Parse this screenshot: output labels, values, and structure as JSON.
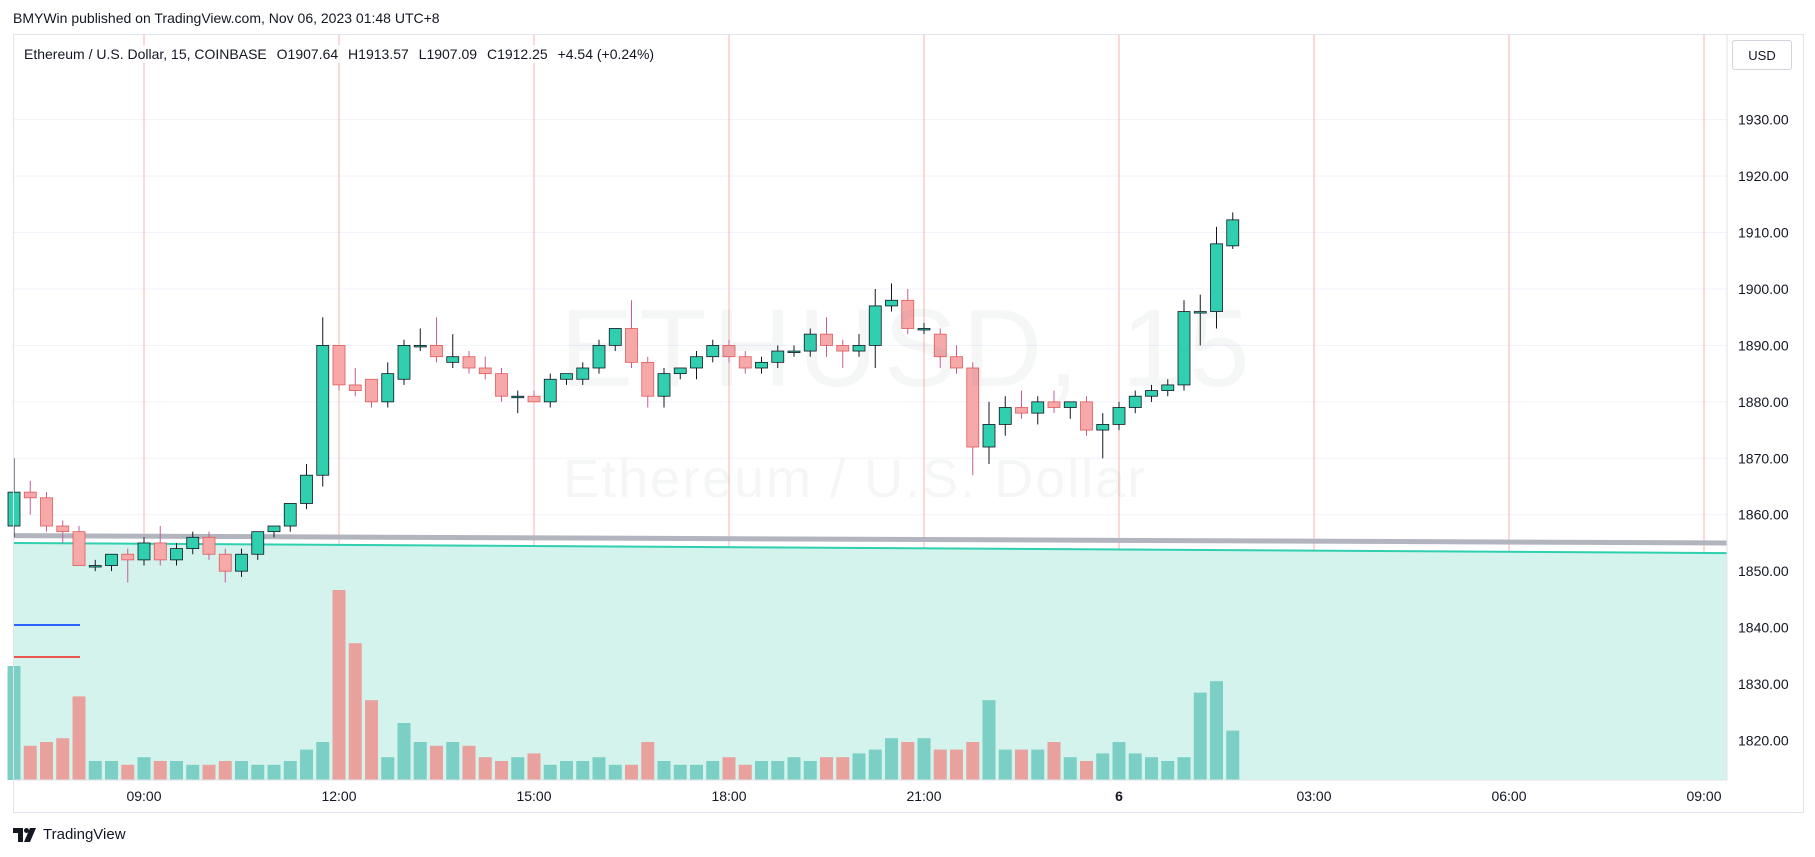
{
  "header": {
    "published": "BMYWin published on TradingView.com, Nov 06, 2023 01:48 UTC+8"
  },
  "legend": {
    "symbol": "Ethereum / U.S. Dollar, 15, COINBASE",
    "open": "O1907.64",
    "high": "H1913.57",
    "low": "L1907.09",
    "close": "C1912.25",
    "change": "+4.54 (+0.24%)"
  },
  "currency_button": "USD",
  "watermark": {
    "ticker": "ETHUSD, 15",
    "name": "Ethereum / U.S. Dollar"
  },
  "brand": {
    "name": "TradingView"
  },
  "colors": {
    "up": "#26a69a",
    "up_fill": "#2fcfb0",
    "down": "#ef5350",
    "down_fill": "#f7a9aa",
    "volume_up": "#7ccfc4",
    "volume_down": "#e8a19d",
    "grid": "#f0f3fa",
    "session_line": "#f4b6b0",
    "ma_gray": "#b2b5be",
    "ma_teal": "#2fcfb0",
    "fill_teal": "#d4f3ed",
    "legend_blue": "#2962ff",
    "legend_red": "#ef5350"
  },
  "chart_data": {
    "type": "candlestick",
    "title": "Ethereum / U.S. Dollar, 15, COINBASE",
    "interval_minutes": 15,
    "ylim": [
      1813,
      1945
    ],
    "y_ticks": [
      1820,
      1830,
      1840,
      1850,
      1860,
      1870,
      1880,
      1890,
      1900,
      1910,
      1920,
      1930
    ],
    "y_tick_labels": [
      "1820.00",
      "1830.00",
      "1840.00",
      "1850.00",
      "1860.00",
      "1870.00",
      "1880.00",
      "1890.00",
      "1900.00",
      "1910.00",
      "1920.00",
      "1930.00"
    ],
    "x_tick_labels": [
      "09:00",
      "12:00",
      "15:00",
      "18:00",
      "21:00",
      "6",
      "03:00",
      "06:00",
      "09:00"
    ],
    "x_ticks_hours": [
      9,
      12,
      15,
      18,
      21,
      24,
      27,
      30,
      33
    ],
    "x_range_hours": [
      7,
      33.3
    ],
    "candles": [
      {
        "t": 7.0,
        "o": 1858,
        "h": 1870,
        "l": 1856,
        "c": 1864
      },
      {
        "t": 7.25,
        "o": 1864,
        "h": 1866,
        "l": 1860,
        "c": 1863
      },
      {
        "t": 7.5,
        "o": 1863,
        "h": 1864,
        "l": 1857,
        "c": 1858
      },
      {
        "t": 7.75,
        "o": 1858,
        "h": 1859,
        "l": 1855,
        "c": 1857
      },
      {
        "t": 8.0,
        "o": 1857,
        "h": 1858,
        "l": 1851,
        "c": 1851
      },
      {
        "t": 8.25,
        "o": 1851,
        "h": 1852,
        "l": 1850,
        "c": 1851
      },
      {
        "t": 8.5,
        "o": 1851,
        "h": 1853,
        "l": 1850,
        "c": 1853
      },
      {
        "t": 8.75,
        "o": 1853,
        "h": 1854,
        "l": 1848,
        "c": 1852
      },
      {
        "t": 9.0,
        "o": 1852,
        "h": 1856,
        "l": 1851,
        "c": 1855
      },
      {
        "t": 9.25,
        "o": 1855,
        "h": 1858,
        "l": 1851,
        "c": 1852
      },
      {
        "t": 9.5,
        "o": 1852,
        "h": 1855,
        "l": 1851,
        "c": 1854
      },
      {
        "t": 9.75,
        "o": 1854,
        "h": 1857,
        "l": 1853,
        "c": 1856
      },
      {
        "t": 10.0,
        "o": 1856,
        "h": 1857,
        "l": 1852,
        "c": 1853
      },
      {
        "t": 10.25,
        "o": 1853,
        "h": 1854,
        "l": 1848,
        "c": 1850
      },
      {
        "t": 10.5,
        "o": 1850,
        "h": 1854,
        "l": 1849,
        "c": 1853
      },
      {
        "t": 10.75,
        "o": 1853,
        "h": 1857,
        "l": 1852,
        "c": 1857
      },
      {
        "t": 11.0,
        "o": 1857,
        "h": 1858,
        "l": 1856,
        "c": 1858
      },
      {
        "t": 11.25,
        "o": 1858,
        "h": 1862,
        "l": 1857,
        "c": 1862
      },
      {
        "t": 11.5,
        "o": 1862,
        "h": 1869,
        "l": 1861,
        "c": 1867
      },
      {
        "t": 11.75,
        "o": 1867,
        "h": 1895,
        "l": 1865,
        "c": 1890
      },
      {
        "t": 12.0,
        "o": 1890,
        "h": 1890,
        "l": 1882,
        "c": 1883
      },
      {
        "t": 12.25,
        "o": 1883,
        "h": 1886,
        "l": 1881,
        "c": 1882
      },
      {
        "t": 12.5,
        "o": 1884,
        "h": 1884,
        "l": 1879,
        "c": 1880
      },
      {
        "t": 12.75,
        "o": 1880,
        "h": 1887,
        "l": 1879,
        "c": 1885
      },
      {
        "t": 13.0,
        "o": 1884,
        "h": 1891,
        "l": 1883,
        "c": 1890
      },
      {
        "t": 13.25,
        "o": 1890,
        "h": 1893,
        "l": 1889,
        "c": 1890
      },
      {
        "t": 13.5,
        "o": 1890,
        "h": 1895,
        "l": 1887,
        "c": 1888
      },
      {
        "t": 13.75,
        "o": 1887,
        "h": 1892,
        "l": 1886,
        "c": 1888
      },
      {
        "t": 14.0,
        "o": 1888,
        "h": 1889,
        "l": 1885,
        "c": 1886
      },
      {
        "t": 14.25,
        "o": 1886,
        "h": 1888,
        "l": 1884,
        "c": 1885
      },
      {
        "t": 14.5,
        "o": 1885,
        "h": 1886,
        "l": 1880,
        "c": 1881
      },
      {
        "t": 14.75,
        "o": 1881,
        "h": 1882,
        "l": 1878,
        "c": 1881
      },
      {
        "t": 15.0,
        "o": 1881,
        "h": 1882,
        "l": 1880,
        "c": 1880
      },
      {
        "t": 15.25,
        "o": 1880,
        "h": 1885,
        "l": 1879,
        "c": 1884
      },
      {
        "t": 15.5,
        "o": 1884,
        "h": 1885,
        "l": 1883,
        "c": 1885
      },
      {
        "t": 15.75,
        "o": 1884,
        "h": 1887,
        "l": 1883,
        "c": 1886
      },
      {
        "t": 16.0,
        "o": 1886,
        "h": 1891,
        "l": 1885,
        "c": 1890
      },
      {
        "t": 16.25,
        "o": 1890,
        "h": 1893,
        "l": 1889,
        "c": 1893
      },
      {
        "t": 16.5,
        "o": 1893,
        "h": 1898,
        "l": 1886,
        "c": 1887
      },
      {
        "t": 16.75,
        "o": 1887,
        "h": 1888,
        "l": 1879,
        "c": 1881
      },
      {
        "t": 17.0,
        "o": 1881,
        "h": 1886,
        "l": 1879,
        "c": 1885
      },
      {
        "t": 17.25,
        "o": 1885,
        "h": 1886,
        "l": 1884,
        "c": 1886
      },
      {
        "t": 17.5,
        "o": 1886,
        "h": 1889,
        "l": 1884,
        "c": 1888
      },
      {
        "t": 17.75,
        "o": 1888,
        "h": 1891,
        "l": 1887,
        "c": 1890
      },
      {
        "t": 18.0,
        "o": 1890,
        "h": 1891,
        "l": 1887,
        "c": 1888
      },
      {
        "t": 18.25,
        "o": 1888,
        "h": 1889,
        "l": 1885,
        "c": 1886
      },
      {
        "t": 18.5,
        "o": 1886,
        "h": 1888,
        "l": 1885,
        "c": 1887
      },
      {
        "t": 18.75,
        "o": 1887,
        "h": 1890,
        "l": 1886,
        "c": 1889
      },
      {
        "t": 19.0,
        "o": 1889,
        "h": 1890,
        "l": 1888,
        "c": 1889
      },
      {
        "t": 19.25,
        "o": 1889,
        "h": 1893,
        "l": 1888,
        "c": 1892
      },
      {
        "t": 19.5,
        "o": 1892,
        "h": 1895,
        "l": 1888,
        "c": 1890
      },
      {
        "t": 19.75,
        "o": 1890,
        "h": 1891,
        "l": 1886,
        "c": 1889
      },
      {
        "t": 20.0,
        "o": 1889,
        "h": 1892,
        "l": 1888,
        "c": 1890
      },
      {
        "t": 20.25,
        "o": 1890,
        "h": 1900,
        "l": 1886,
        "c": 1897
      },
      {
        "t": 20.5,
        "o": 1897,
        "h": 1901,
        "l": 1896,
        "c": 1898
      },
      {
        "t": 20.75,
        "o": 1898,
        "h": 1900,
        "l": 1892,
        "c": 1893
      },
      {
        "t": 21.0,
        "o": 1893,
        "h": 1894,
        "l": 1892,
        "c": 1893
      },
      {
        "t": 21.25,
        "o": 1892,
        "h": 1893,
        "l": 1886,
        "c": 1888
      },
      {
        "t": 21.5,
        "o": 1888,
        "h": 1890,
        "l": 1885,
        "c": 1886
      },
      {
        "t": 21.75,
        "o": 1886,
        "h": 1887,
        "l": 1867,
        "c": 1872
      },
      {
        "t": 22.0,
        "o": 1872,
        "h": 1880,
        "l": 1869,
        "c": 1876
      },
      {
        "t": 22.25,
        "o": 1876,
        "h": 1881,
        "l": 1874,
        "c": 1879
      },
      {
        "t": 22.5,
        "o": 1879,
        "h": 1882,
        "l": 1877,
        "c": 1878
      },
      {
        "t": 22.75,
        "o": 1878,
        "h": 1881,
        "l": 1876,
        "c": 1880
      },
      {
        "t": 23.0,
        "o": 1880,
        "h": 1882,
        "l": 1878,
        "c": 1879
      },
      {
        "t": 23.25,
        "o": 1879,
        "h": 1880,
        "l": 1877,
        "c": 1880
      },
      {
        "t": 23.5,
        "o": 1880,
        "h": 1881,
        "l": 1874,
        "c": 1875
      },
      {
        "t": 23.75,
        "o": 1875,
        "h": 1878,
        "l": 1870,
        "c": 1876
      },
      {
        "t": 24.0,
        "o": 1876,
        "h": 1880,
        "l": 1875,
        "c": 1879
      },
      {
        "t": 24.25,
        "o": 1879,
        "h": 1882,
        "l": 1878,
        "c": 1881
      },
      {
        "t": 24.5,
        "o": 1881,
        "h": 1883,
        "l": 1880,
        "c": 1882
      },
      {
        "t": 24.75,
        "o": 1882,
        "h": 1884,
        "l": 1881,
        "c": 1883
      },
      {
        "t": 25.0,
        "o": 1883,
        "h": 1898,
        "l": 1882,
        "c": 1896
      },
      {
        "t": 25.25,
        "o": 1896,
        "h": 1899,
        "l": 1890,
        "c": 1896
      },
      {
        "t": 25.5,
        "o": 1896,
        "h": 1911,
        "l": 1893,
        "c": 1908
      },
      {
        "t": 25.75,
        "o": 1907.64,
        "h": 1913.57,
        "l": 1907.09,
        "c": 1912.25
      }
    ],
    "volume": [
      30,
      9,
      10,
      11,
      22,
      5,
      5,
      4,
      6,
      5,
      5,
      4,
      4,
      5,
      5,
      4,
      4,
      5,
      8,
      10,
      50,
      36,
      21,
      6,
      15,
      10,
      9,
      10,
      9,
      6,
      5,
      6,
      7,
      4,
      5,
      5,
      6,
      4,
      4,
      10,
      5,
      4,
      4,
      5,
      6,
      4,
      5,
      5,
      6,
      5,
      6,
      6,
      7,
      8,
      11,
      10,
      11,
      8,
      8,
      10,
      21,
      8,
      8,
      8,
      10,
      6,
      5,
      7,
      10,
      7,
      6,
      5,
      6,
      23,
      26,
      13
    ],
    "moving_average_gray": [
      1856.3,
      1855.0
    ],
    "moving_average_teal": [
      1855.0,
      1853.2
    ]
  }
}
